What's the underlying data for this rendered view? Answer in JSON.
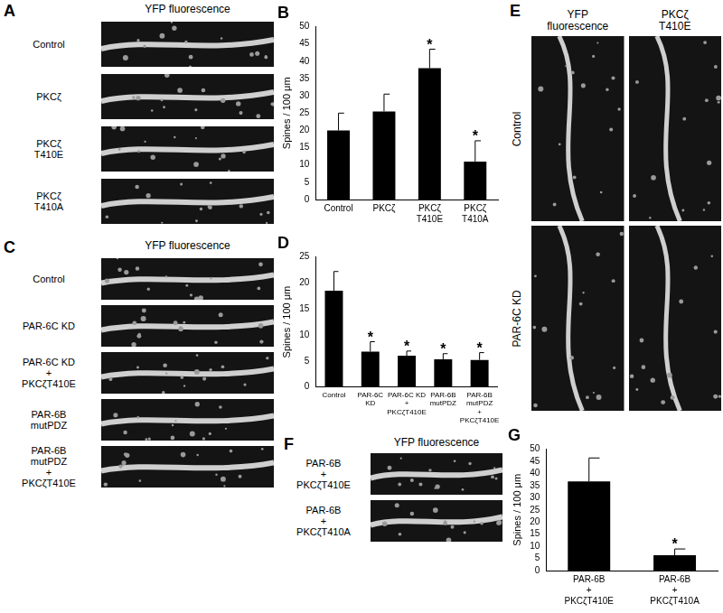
{
  "chart_data": [
    {
      "type": "bar",
      "title": "B",
      "categories": [
        "Control",
        "PKCζ",
        [
          "PKCζ",
          "T410E"
        ],
        [
          "PKCζ",
          "T410A"
        ]
      ],
      "values": [
        20,
        25.5,
        38,
        11
      ],
      "errors": [
        5,
        5,
        5.5,
        6
      ],
      "annotations": [
        null,
        null,
        "*",
        "*"
      ],
      "color": "#000000",
      "ylabel": "Spines / 100 μm",
      "ylim": [
        0,
        50
      ],
      "yticks": [
        0,
        5,
        10,
        15,
        20,
        25,
        30,
        35,
        40,
        45,
        50
      ],
      "grid": false
    },
    {
      "type": "bar",
      "title": "D",
      "categories": [
        "Control",
        [
          "PAR-6C",
          "KD"
        ],
        [
          "PAR-6C KD",
          "+",
          "PKCζT410E"
        ],
        [
          "PAR-6B",
          "mutPDZ"
        ],
        [
          "PAR-6B",
          "mutPDZ",
          "+",
          "PKCζT410E"
        ]
      ],
      "values": [
        18.5,
        6.8,
        6.0,
        5.3,
        5.2
      ],
      "errors": [
        3.7,
        1.9,
        0.9,
        1.1,
        1.4
      ],
      "annotations": [
        null,
        "*",
        "*",
        "*",
        "*"
      ],
      "color": "#000000",
      "ylabel": "Spines / 100 μm",
      "ylim": [
        0,
        25
      ],
      "yticks": [
        0,
        5,
        10,
        15,
        20,
        25
      ],
      "grid": false
    },
    {
      "type": "bar",
      "title": "G",
      "categories": [
        [
          "PAR-6B",
          "+",
          "PKCζT410E"
        ],
        [
          "PAR-6B",
          "+",
          "PKCζT410A"
        ]
      ],
      "values": [
        36.7,
        6.3
      ],
      "errors": [
        9.7,
        2.6
      ],
      "annotations": [
        null,
        "*"
      ],
      "color": "#000000",
      "ylabel": "Spines / 100 μm",
      "ylim": [
        0,
        50
      ],
      "yticks": [
        0,
        5,
        10,
        15,
        20,
        25,
        30,
        35,
        40,
        45,
        50
      ],
      "grid": false
    }
  ],
  "panels": [
    {
      "label": "A",
      "headers": [
        "YFP fluorescence"
      ],
      "rows": [
        "Control",
        "PKCζ",
        [
          "PKCζ",
          "T410E"
        ],
        [
          "PKCζ",
          "T410A"
        ]
      ]
    },
    {
      "label": "C",
      "headers": [
        "YFP fluorescence"
      ],
      "rows": [
        "Control",
        "PAR-6C KD",
        [
          "PAR-6C KD",
          "+",
          "PKCζT410E"
        ],
        [
          "PAR-6B",
          "mutPDZ"
        ],
        [
          "PAR-6B",
          "mutPDZ",
          "+",
          "PKCζT410E"
        ]
      ]
    },
    {
      "label": "E",
      "headers": [
        [
          "YFP",
          "fluorescence"
        ],
        [
          "PKCζ",
          "T410E"
        ]
      ],
      "rows": [
        "Control",
        "PAR-6C KD"
      ]
    },
    {
      "label": "F",
      "headers": [
        "YFP fluorescence"
      ],
      "rows": [
        [
          "PAR-6B",
          "+",
          "PKCζT410E"
        ],
        [
          "PAR-6B",
          "+",
          "PKCζT410A"
        ]
      ]
    }
  ]
}
